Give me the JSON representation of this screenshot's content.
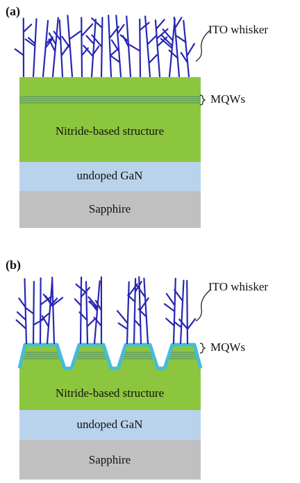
{
  "panels": [
    {
      "label": "(a)",
      "ito": "ITO whisker",
      "mqw": "MQWs",
      "layers": [
        "Nitride-based structure",
        "undoped GaN",
        "Sapphire"
      ]
    },
    {
      "label": "(b)",
      "ito": "ITO whisker",
      "mqw": "MQWs",
      "layers": [
        "Nitride-based structure",
        "undoped GaN",
        "Sapphire"
      ]
    }
  ]
}
